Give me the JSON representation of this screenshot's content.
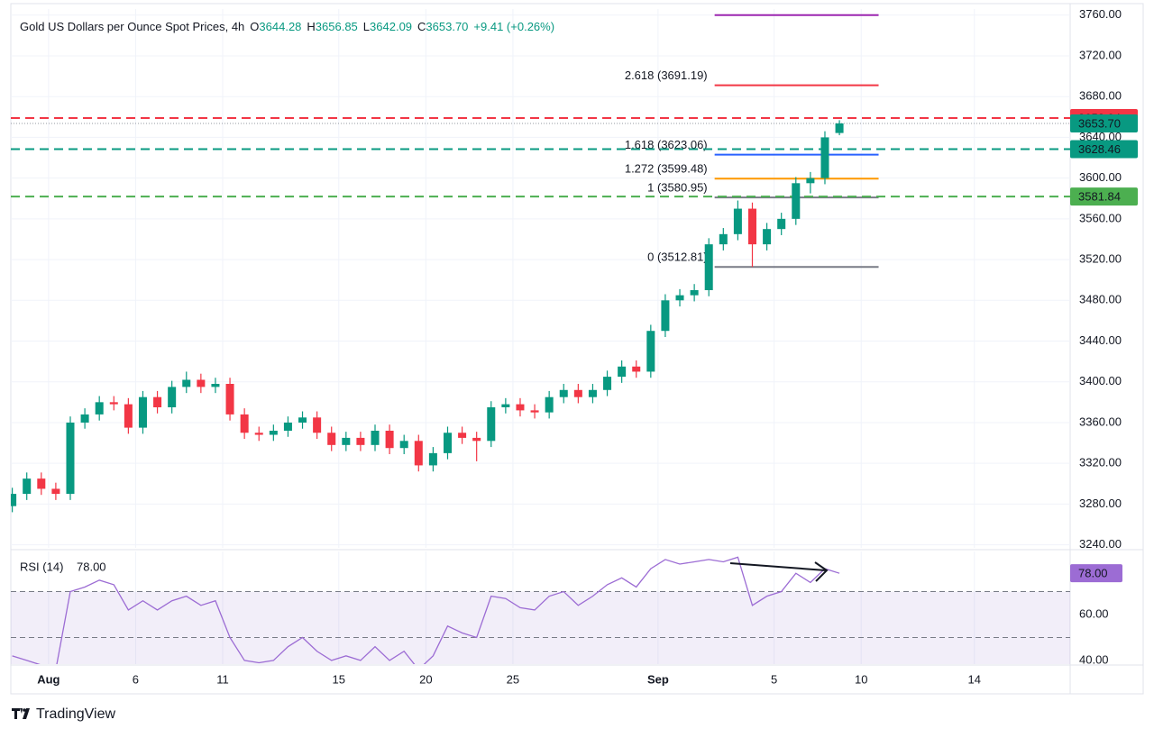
{
  "chart_data": {
    "type": "candlestick",
    "title": "Gold US Dollars per Ounce Spot Prices, 4h",
    "ohlc": [
      {
        "key": "O",
        "value": "3644.28"
      },
      {
        "key": "H",
        "value": "3656.85"
      },
      {
        "key": "L",
        "value": "3642.09"
      },
      {
        "key": "C",
        "value": "3653.70"
      }
    ],
    "change": "+9.41 (+0.26%)",
    "up_color": "#089981",
    "down_color": "#f23645",
    "xlim": [
      -1.3,
      35.2
    ],
    "xticks": [
      {
        "value": 0,
        "label": "Aug",
        "major": true
      },
      {
        "value": 3,
        "label": "6"
      },
      {
        "value": 6,
        "label": "11"
      },
      {
        "value": 10,
        "label": "15"
      },
      {
        "value": 13,
        "label": "20"
      },
      {
        "value": 16,
        "label": "25"
      },
      {
        "value": 21,
        "label": "Sep",
        "major": true
      },
      {
        "value": 25,
        "label": "5"
      },
      {
        "value": 28,
        "label": "10"
      },
      {
        "value": 31.9,
        "label": "14"
      }
    ],
    "ylim": [
      3237,
      3766
    ],
    "yticks": [
      {
        "value": 3240,
        "label": "3240.00"
      },
      {
        "value": 3280,
        "label": "3280.00"
      },
      {
        "value": 3320,
        "label": "3320.00"
      },
      {
        "value": 3360,
        "label": "3360.00"
      },
      {
        "value": 3400,
        "label": "3400.00"
      },
      {
        "value": 3440,
        "label": "3440.00"
      },
      {
        "value": 3480,
        "label": "3480.00"
      },
      {
        "value": 3520,
        "label": "3520.00"
      },
      {
        "value": 3560,
        "label": "3560.00"
      },
      {
        "value": 3600,
        "label": "3600.00"
      },
      {
        "value": 3640,
        "label": "3640.00"
      },
      {
        "value": 3680,
        "label": "3680.00"
      },
      {
        "value": 3720,
        "label": "3720.00"
      },
      {
        "value": 3760,
        "label": "3760.00"
      }
    ],
    "grid": true,
    "candles": {
      "x": [
        -1.25,
        -0.75,
        -0.25,
        0.25,
        0.75,
        1.25,
        1.75,
        2.25,
        2.75,
        3.25,
        3.75,
        4.25,
        4.75,
        5.25,
        5.75,
        6.25,
        6.75,
        7.25,
        7.75,
        8.25,
        8.75,
        9.25,
        9.75,
        10.25,
        10.75,
        11.25,
        11.75,
        12.25,
        12.75,
        13.25,
        13.75,
        14.25,
        14.75,
        15.25,
        15.75,
        16.25,
        16.75,
        17.25,
        17.75,
        18.25,
        18.75,
        19.25,
        19.75,
        20.25,
        20.75,
        21.25,
        21.75,
        22.25,
        22.75,
        23.25,
        23.75,
        24.25,
        24.75,
        25.25,
        25.75,
        26.25,
        26.75,
        27.25
      ],
      "open": [
        3278,
        3290,
        3305,
        3295,
        3290,
        3360,
        3368,
        3380,
        3378,
        3355,
        3385,
        3375,
        3395,
        3402,
        3395,
        3398,
        3368,
        3350,
        3348,
        3352,
        3360,
        3365,
        3350,
        3338,
        3345,
        3338,
        3352,
        3335,
        3342,
        3318,
        3330,
        3350,
        3345,
        3342,
        3375,
        3378,
        3372,
        3370,
        3385,
        3392,
        3385,
        3392,
        3405,
        3415,
        3410,
        3450,
        3480,
        3485,
        3490,
        3535,
        3545,
        3570,
        3535,
        3550,
        3560,
        3595,
        3600,
        3644.28
      ],
      "high": [
        3296,
        3311,
        3311,
        3301,
        3366,
        3374,
        3386,
        3386,
        3384,
        3391,
        3391,
        3401,
        3410,
        3408,
        3404,
        3404,
        3374,
        3356,
        3358,
        3366,
        3371,
        3371,
        3356,
        3351,
        3351,
        3358,
        3358,
        3348,
        3348,
        3336,
        3356,
        3356,
        3351,
        3381,
        3384,
        3384,
        3378,
        3391,
        3398,
        3398,
        3398,
        3411,
        3421,
        3421,
        3456,
        3486,
        3491,
        3496,
        3541,
        3551,
        3578,
        3576,
        3556,
        3566,
        3601,
        3606,
        3646,
        3656.85
      ],
      "low": [
        3272,
        3284,
        3289,
        3284,
        3284,
        3354,
        3362,
        3372,
        3349,
        3349,
        3369,
        3369,
        3389,
        3389,
        3389,
        3362,
        3344,
        3342,
        3342,
        3346,
        3354,
        3344,
        3332,
        3332,
        3332,
        3332,
        3329,
        3329,
        3312,
        3312,
        3324,
        3339,
        3322,
        3336,
        3369,
        3366,
        3364,
        3364,
        3379,
        3379,
        3379,
        3386,
        3399,
        3404,
        3404,
        3444,
        3474,
        3479,
        3484,
        3529,
        3539,
        3512.81,
        3529,
        3544,
        3554,
        3585,
        3594,
        3642.09
      ],
      "close": [
        3290,
        3305,
        3295,
        3290,
        3360,
        3368,
        3380,
        3378,
        3355,
        3385,
        3375,
        3395,
        3402,
        3395,
        3398,
        3368,
        3350,
        3348,
        3352,
        3360,
        3365,
        3350,
        3338,
        3345,
        3338,
        3352,
        3335,
        3342,
        3318,
        3330,
        3350,
        3345,
        3342,
        3375,
        3378,
        3372,
        3370,
        3385,
        3392,
        3385,
        3392,
        3405,
        3415,
        3410,
        3450,
        3480,
        3485,
        3490,
        3535,
        3545,
        3570,
        3535,
        3550,
        3560,
        3595,
        3600,
        3640,
        3653.7
      ]
    },
    "price_lines": [
      {
        "value": 3658.94,
        "label": "3658.94",
        "color": "#f23645",
        "style": "dashed"
      },
      {
        "value": 3653.7,
        "label": "3653.70",
        "color": "#089981",
        "style": "dotted"
      },
      {
        "value": 3628.46,
        "label": "3628.46",
        "color": "#089981",
        "style": "dashed"
      },
      {
        "value": 3581.84,
        "label": "3581.84",
        "color": "#4caf50",
        "style": "dashed"
      }
    ],
    "fib_x": [
      22.95,
      28.6
    ],
    "fib_levels": [
      {
        "label": null,
        "value": 3760,
        "color": "#9c27b0"
      },
      {
        "label": "2.618 (3691.19)",
        "value": 3691.19,
        "color": "#f23645"
      },
      {
        "label": "1.618 (3623.06)",
        "value": 3623.06,
        "color": "#2962ff"
      },
      {
        "label": "1.272 (3599.48)",
        "value": 3599.48,
        "color": "#ff9800"
      },
      {
        "label": "1 (3580.95)",
        "value": 3580.95,
        "color": "#787b86"
      },
      {
        "label": "0 (3512.81)",
        "value": 3512.81,
        "color": "#787b86"
      }
    ],
    "rsi": {
      "title": "RSI (14)",
      "value_label": "78.00",
      "color": "#9c6cd4",
      "ylim": [
        38.4,
        87.5
      ],
      "yticks": [
        {
          "value": 40,
          "label": "40.00"
        },
        {
          "value": 60,
          "label": "60.00"
        }
      ],
      "band": [
        30,
        70
      ],
      "midline": 50,
      "values": [
        42,
        40,
        38,
        36,
        70,
        72,
        75,
        73,
        62,
        66,
        62,
        66,
        68,
        64,
        66,
        50,
        40,
        39,
        40,
        46,
        50,
        44,
        40,
        42,
        40,
        46,
        40,
        44,
        36,
        42,
        55,
        52,
        50,
        68,
        67,
        63,
        62,
        68,
        70,
        64,
        68,
        73,
        76,
        72,
        80,
        84,
        82,
        83,
        84,
        83,
        85,
        64,
        68,
        70,
        78,
        74,
        80,
        78
      ]
    },
    "brand": "TradingView"
  }
}
